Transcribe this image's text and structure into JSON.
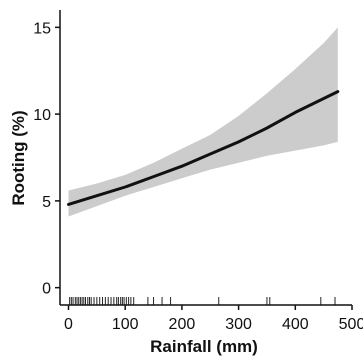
{
  "chart_data": {
    "type": "line",
    "xlabel": "Rainfall (mm)",
    "ylabel": "Rooting (%)",
    "xlim": [
      -15,
      500
    ],
    "ylim": [
      -1,
      16
    ],
    "xticks": [
      0,
      100,
      200,
      300,
      400,
      500
    ],
    "yticks": [
      0,
      5,
      10,
      15
    ],
    "grid": false,
    "series": [
      {
        "x": [
          0,
          50,
          100,
          150,
          200,
          250,
          300,
          350,
          400,
          450,
          475
        ],
        "y": [
          4.8,
          5.3,
          5.8,
          6.4,
          7.0,
          7.7,
          8.4,
          9.2,
          10.1,
          10.9,
          11.3
        ],
        "lower": [
          4.1,
          4.7,
          5.3,
          5.8,
          6.3,
          6.8,
          7.2,
          7.6,
          7.9,
          8.2,
          8.4
        ],
        "upper": [
          5.6,
          6.0,
          6.5,
          7.2,
          8.0,
          8.8,
          9.9,
          11.2,
          12.6,
          14.1,
          15.0
        ]
      }
    ],
    "rug": [
      2,
      5,
      8,
      12,
      15,
      18,
      21,
      24,
      27,
      30,
      34,
      37,
      40,
      45,
      50,
      55,
      60,
      65,
      70,
      75,
      80,
      85,
      88,
      92,
      95,
      98,
      102,
      106,
      110,
      115,
      140,
      150,
      165,
      180,
      265,
      350,
      355,
      445,
      470
    ],
    "colors": {
      "line": "#111111",
      "band": "#cccccc",
      "axis": "#111111"
    }
  }
}
